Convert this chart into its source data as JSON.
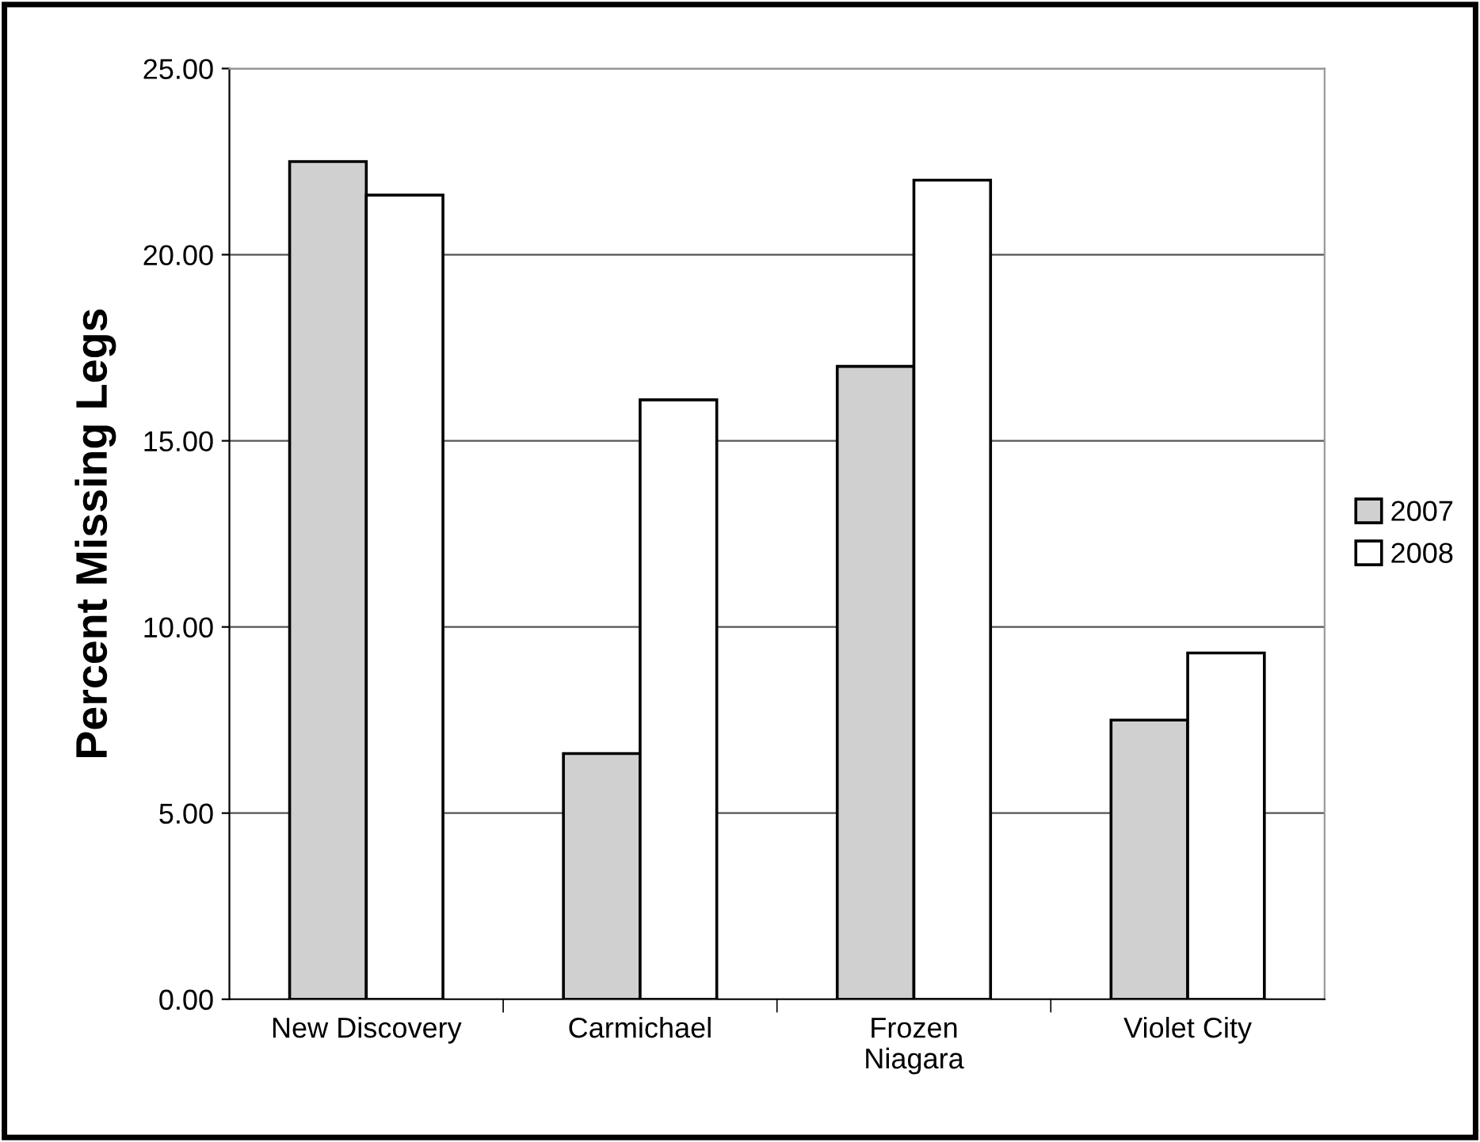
{
  "chart_data": {
    "type": "bar",
    "ylabel": "Percent Missing Legs",
    "categories": [
      "New Discovery",
      "Carmichael",
      "Frozen\nNiagara",
      "Violet City"
    ],
    "series": [
      {
        "name": "2007",
        "color": "#d0d0d0",
        "values": [
          22.5,
          6.6,
          17.0,
          7.5
        ]
      },
      {
        "name": "2008",
        "color": "#ffffff",
        "values": [
          21.6,
          16.1,
          22.0,
          9.3
        ]
      }
    ],
    "ylim": [
      0,
      25
    ],
    "yticks": [
      {
        "value": 0,
        "label": "0.00"
      },
      {
        "value": 5,
        "label": "5.00"
      },
      {
        "value": 10,
        "label": "10.00"
      },
      {
        "value": 15,
        "label": "15.00"
      },
      {
        "value": 20,
        "label": "20.00"
      },
      {
        "value": 25,
        "label": "25.00"
      }
    ],
    "grid": "y",
    "legend": "right"
  }
}
